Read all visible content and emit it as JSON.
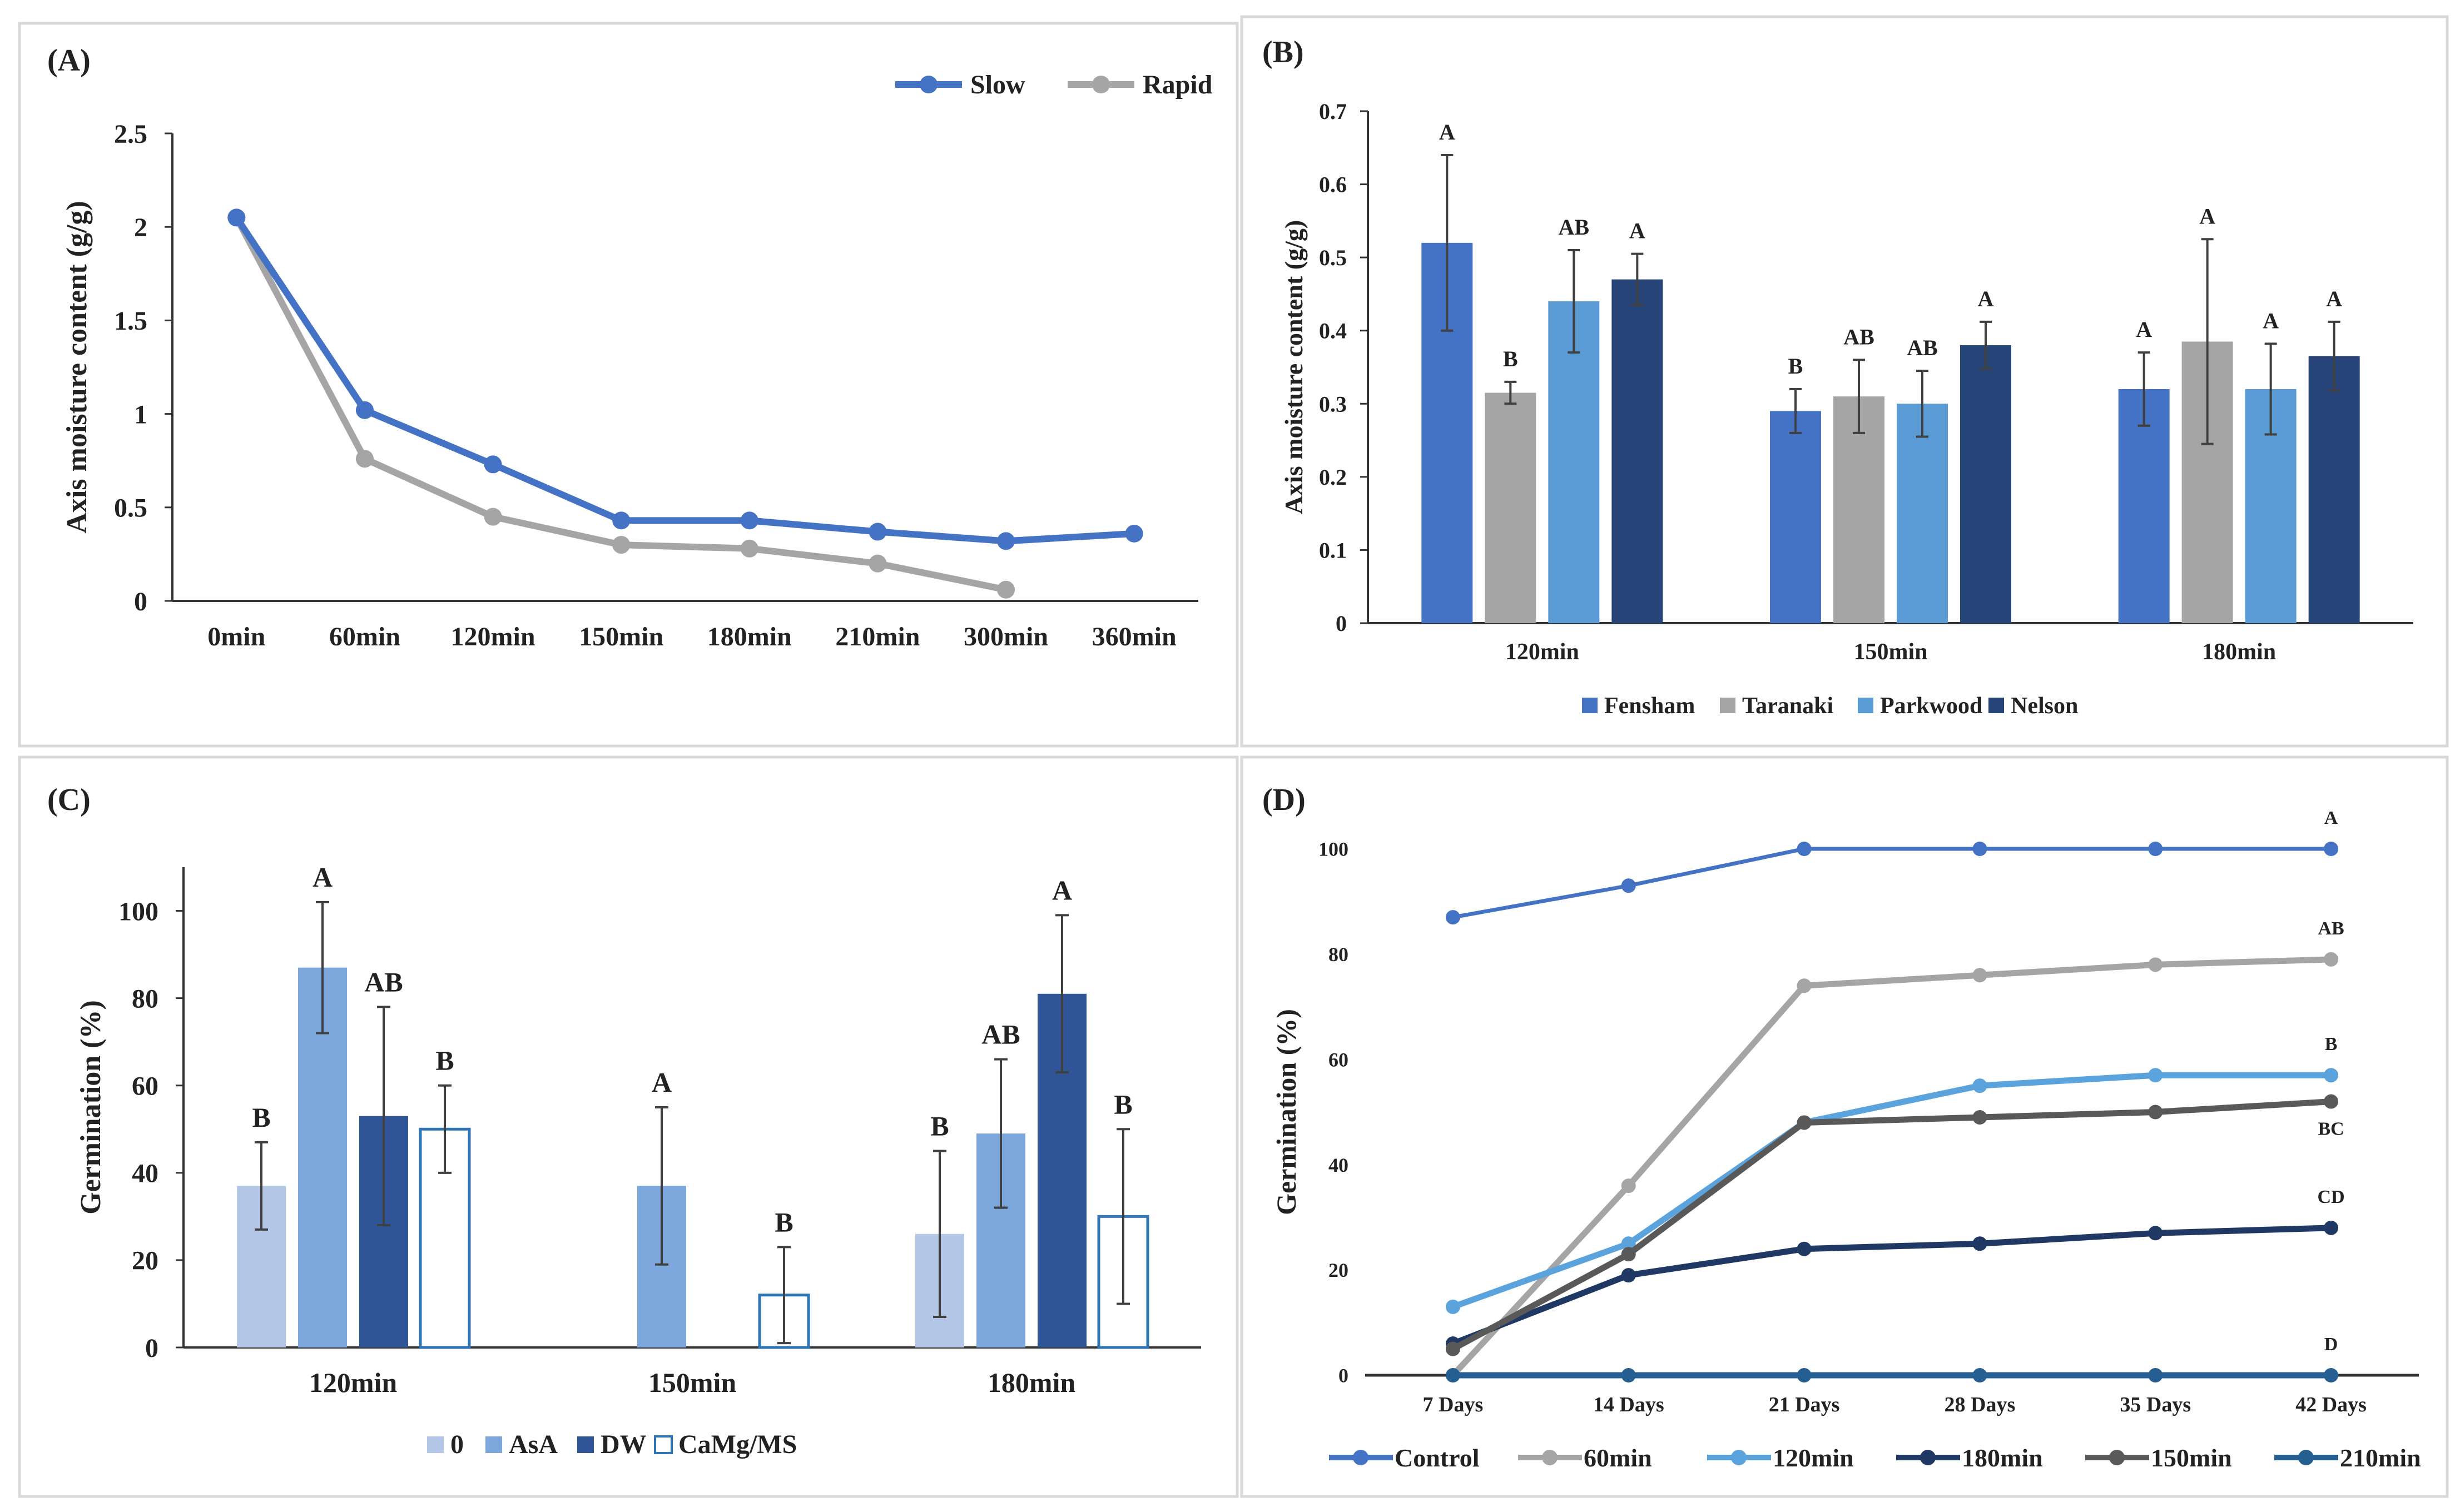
{
  "colors": {
    "slow": "#4472C4",
    "rapid": "#A5A5A5",
    "fensham": "#4472C4",
    "taranaki": "#A5A5A5",
    "parkwood": "#5B9BD5",
    "nelson": "#264478",
    "c_zero": "#B4C7E7",
    "c_asa": "#7BA7DC",
    "c_dw": "#2F5597",
    "c_camg": "#2E75B6",
    "d_control": "#4472C4",
    "d_60": "#A5A5A5",
    "d_120": "#5BA3DD",
    "d_180": "#203864",
    "d_150": "#595959",
    "d_210": "#255E91",
    "error": "#404040",
    "axis": "#333333",
    "border": "#D9D9D9"
  },
  "chart_data": [
    {
      "panel": "(A)",
      "type": "line",
      "ylabel": "Axis moisture content (g/g)",
      "xlabel": "",
      "ylim": [
        0,
        2.5
      ],
      "yticks": [
        "0",
        "0.5",
        "1",
        "1.5",
        "2",
        "2.5"
      ],
      "categories": [
        "0min",
        "60min",
        "120min",
        "150min",
        "180min",
        "210min",
        "300min",
        "360min"
      ],
      "series": [
        {
          "name": "Slow",
          "values": [
            2.05,
            1.02,
            0.73,
            0.43,
            0.43,
            0.37,
            0.32,
            0.36
          ]
        },
        {
          "name": "Rapid",
          "values": [
            2.05,
            0.76,
            0.45,
            0.3,
            0.28,
            0.2,
            0.06,
            null
          ]
        }
      ],
      "legend": "top-right"
    },
    {
      "panel": "(B)",
      "type": "bar",
      "ylabel": "Axis moisture content (g/g)",
      "ylim": [
        0,
        0.7
      ],
      "yticks": [
        "0",
        "0.1",
        "0.2",
        "0.3",
        "0.4",
        "0.5",
        "0.6",
        "0.7"
      ],
      "categories": [
        "120min",
        "150min",
        "180min"
      ],
      "series": [
        {
          "name": "Fensham",
          "values": [
            0.52,
            0.29,
            0.32
          ],
          "errors": [
            0.12,
            0.03,
            0.05
          ],
          "letters": [
            "A",
            "B",
            "A"
          ]
        },
        {
          "name": "Taranaki",
          "values": [
            0.315,
            0.31,
            0.385
          ],
          "errors": [
            0.015,
            0.05,
            0.14
          ],
          "letters": [
            "B",
            "AB",
            "A"
          ]
        },
        {
          "name": "Parkwood",
          "values": [
            0.44,
            0.3,
            0.32
          ],
          "errors": [
            0.07,
            0.045,
            0.062
          ],
          "letters": [
            "AB",
            "AB",
            "A"
          ]
        },
        {
          "name": "Nelson",
          "values": [
            0.47,
            0.38,
            0.365
          ],
          "errors": [
            0.035,
            0.032,
            0.047
          ],
          "letters": [
            "A",
            "A",
            "A"
          ]
        }
      ],
      "legend": "bottom"
    },
    {
      "panel": "(C)",
      "type": "bar",
      "ylabel": "Germination (%)",
      "ylim": [
        0,
        110
      ],
      "yticks": [
        "0",
        "20",
        "40",
        "60",
        "80",
        "100"
      ],
      "categories": [
        "120min",
        "150min",
        "180min"
      ],
      "series": [
        {
          "name": "0",
          "values": [
            37,
            null,
            26
          ],
          "errors": [
            10,
            null,
            19
          ],
          "letters": [
            "B",
            null,
            "B"
          ]
        },
        {
          "name": "AsA",
          "values": [
            87,
            37,
            49
          ],
          "errors": [
            15,
            18,
            17
          ],
          "letters": [
            "A",
            "A",
            "AB"
          ]
        },
        {
          "name": "DW",
          "values": [
            53,
            null,
            81
          ],
          "errors": [
            25,
            null,
            18
          ],
          "letters": [
            "AB",
            null,
            "A"
          ]
        },
        {
          "name": "CaMg/MS",
          "values": [
            50,
            12,
            30
          ],
          "errors": [
            10,
            11,
            20
          ],
          "letters": [
            "B",
            "B",
            "B"
          ]
        }
      ],
      "legend": "bottom"
    },
    {
      "panel": "(D)",
      "type": "line",
      "ylabel": "Germination (%)",
      "ylim": [
        0,
        100
      ],
      "yticks": [
        "0",
        "20",
        "40",
        "60",
        "80",
        "100"
      ],
      "categories": [
        "7 Days",
        "14 Days",
        "21 Days",
        "28 Days",
        "35 Days",
        "42 Days"
      ],
      "series": [
        {
          "name": "Control",
          "values": [
            87,
            93,
            100,
            100,
            100,
            100
          ],
          "letter": "A"
        },
        {
          "name": "60min",
          "values": [
            0,
            36,
            74,
            76,
            78,
            79
          ],
          "letter": "AB"
        },
        {
          "name": "120min",
          "values": [
            13,
            25,
            48,
            55,
            57,
            57
          ],
          "letter": "B"
        },
        {
          "name": "180min",
          "values": [
            6,
            19,
            24,
            25,
            27,
            28
          ],
          "letter": "CD"
        },
        {
          "name": "150min",
          "values": [
            5,
            23,
            48,
            49,
            50,
            52
          ],
          "letter": "BC"
        },
        {
          "name": "210min",
          "values": [
            0,
            0,
            0,
            0,
            0,
            0
          ],
          "letter": "D"
        }
      ],
      "legend": "bottom"
    }
  ]
}
